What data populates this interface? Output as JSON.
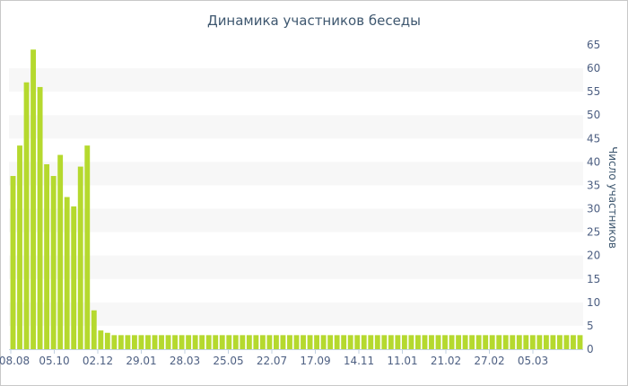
{
  "chart_data": {
    "type": "bar",
    "title": "Динамика участников беседы",
    "ylabel": "Число участников",
    "xlabel": "",
    "ylim": [
      0,
      65
    ],
    "yticks": [
      0,
      5,
      10,
      15,
      20,
      25,
      30,
      35,
      40,
      45,
      50,
      55,
      60,
      65
    ],
    "y_axis_side": "right",
    "grid": "alternating horizontal bands",
    "legend": "none",
    "bar_color": "#b5d92e",
    "band_color": "#f7f7f7",
    "xtick_labels": [
      "08.08",
      "05.10",
      "02.12",
      "29.01",
      "28.03",
      "25.05",
      "22.07",
      "17.09",
      "14.11",
      "11.01",
      "21.02",
      "27.02",
      "05.03"
    ],
    "values": [
      37,
      43.5,
      57,
      64,
      56,
      39.5,
      37,
      41.5,
      32.5,
      30.5,
      39,
      43.5,
      8.3,
      4,
      3.5,
      3,
      3,
      3,
      3,
      3,
      3,
      3,
      3,
      3,
      3,
      3,
      3,
      3,
      3,
      3,
      3,
      3,
      3,
      3,
      3,
      3,
      3,
      3,
      3,
      3,
      3,
      3,
      3,
      3,
      3,
      3,
      3,
      3,
      3,
      3,
      3,
      3,
      3,
      3,
      3,
      3,
      3,
      3,
      3,
      3,
      3,
      3,
      3,
      3,
      3,
      3,
      3,
      3,
      3,
      3,
      3,
      3,
      3,
      3,
      3,
      3,
      3,
      3,
      3,
      3,
      3,
      3,
      3,
      3,
      3
    ]
  }
}
